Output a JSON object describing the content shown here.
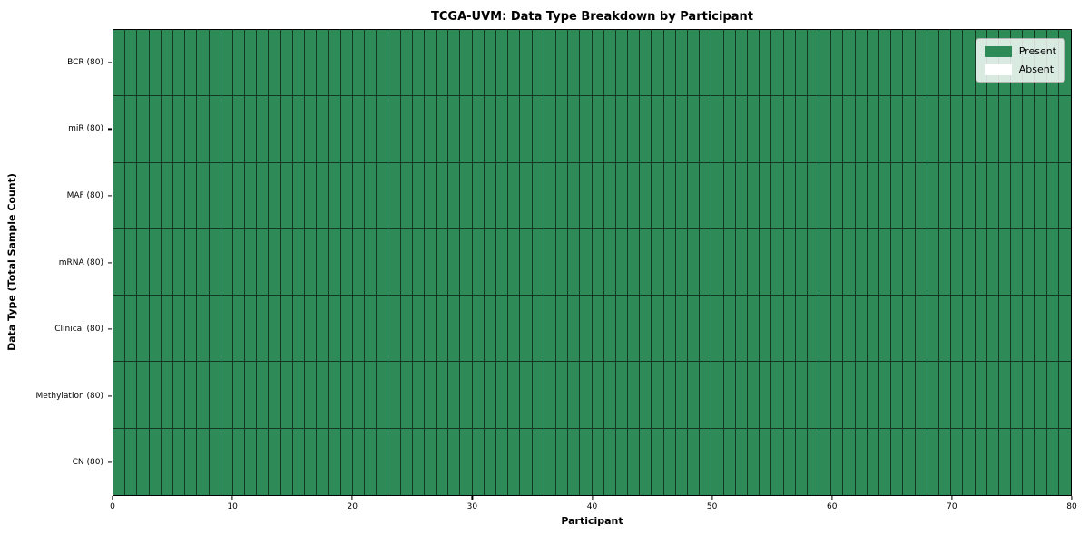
{
  "figure": {
    "title": "TCGA-UVM: Data Type Breakdown by Participant",
    "xlabel": "Participant",
    "ylabel": "Data Type (Total Sample Count)"
  },
  "legend": {
    "position": "upper right",
    "items": [
      {
        "label": "Present",
        "color": "#2e8b57"
      },
      {
        "label": "Absent",
        "color": "#ffffff"
      }
    ]
  },
  "axes": {
    "x_ticks": [
      "0",
      "10",
      "20",
      "30",
      "40",
      "50",
      "60",
      "70",
      "80"
    ],
    "y_ticks_top_to_bottom": [
      "BCR (80)",
      "miR (80)",
      "MAF (80)",
      "mRNA (80)",
      "Clinical (80)",
      "Methylation (80)",
      "CN (80)"
    ]
  },
  "chart_data": {
    "type": "heatmap",
    "title": "TCGA-UVM: Data Type Breakdown by Participant",
    "xlabel": "Participant",
    "ylabel": "Data Type (Total Sample Count)",
    "x_range": [
      0,
      80
    ],
    "n_participants": 80,
    "x_tick_values": [
      0,
      10,
      20,
      30,
      40,
      50,
      60,
      70,
      80
    ],
    "rows_top_to_bottom": [
      {
        "label": "BCR (80)",
        "data_type": "BCR",
        "total_samples": 80,
        "present_count": 80,
        "absent_count": 0
      },
      {
        "label": "miR (80)",
        "data_type": "miR",
        "total_samples": 80,
        "present_count": 80,
        "absent_count": 0
      },
      {
        "label": "MAF (80)",
        "data_type": "MAF",
        "total_samples": 80,
        "present_count": 80,
        "absent_count": 0
      },
      {
        "label": "mRNA (80)",
        "data_type": "mRNA",
        "total_samples": 80,
        "present_count": 80,
        "absent_count": 0
      },
      {
        "label": "Clinical (80)",
        "data_type": "Clinical",
        "total_samples": 80,
        "present_count": 80,
        "absent_count": 0
      },
      {
        "label": "Methylation (80)",
        "data_type": "Methylation",
        "total_samples": 80,
        "present_count": 80,
        "absent_count": 0
      },
      {
        "label": "CN (80)",
        "data_type": "CN",
        "total_samples": 80,
        "present_count": 80,
        "absent_count": 0
      }
    ],
    "all_cells_present": true,
    "cell_states": {
      "present": 1,
      "absent": 0
    },
    "colors": {
      "present": "#2e8b57",
      "absent": "#ffffff",
      "cell_edge": "#000000"
    },
    "legend_position": "upper right",
    "grid": false
  }
}
